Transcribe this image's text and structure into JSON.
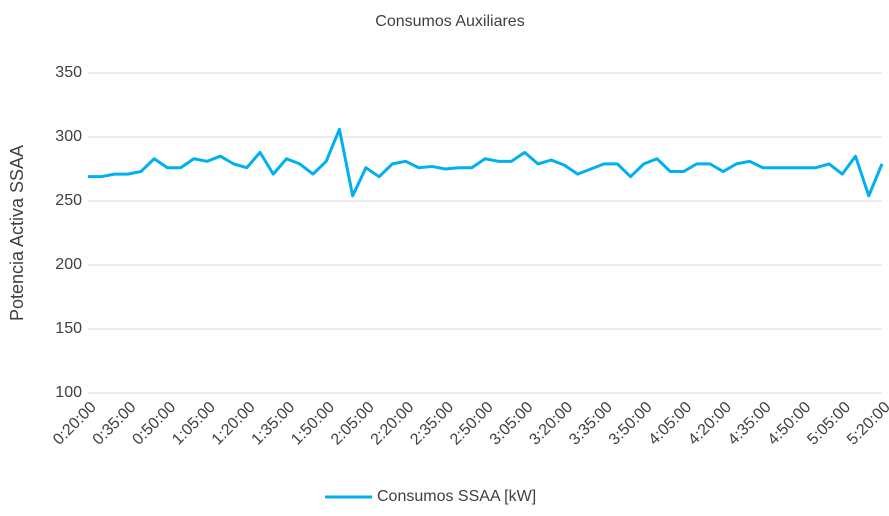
{
  "chart_data": {
    "type": "line",
    "title": "Consumos Auxiliares",
    "y_label": "Potencia Activa SSAA",
    "categories": [
      "0:20:00",
      null,
      null,
      "0:35:00",
      null,
      null,
      "0:50:00",
      null,
      null,
      "1:05:00",
      null,
      null,
      "1:20:00",
      null,
      null,
      "1:35:00",
      null,
      null,
      "1:50:00",
      null,
      null,
      "2:05:00",
      null,
      null,
      "2:20:00",
      null,
      null,
      "2:35:00",
      null,
      null,
      "2:50:00",
      null,
      null,
      "3:05:00",
      null,
      null,
      "3:20:00",
      null,
      null,
      "3:35:00",
      null,
      null,
      "3:50:00",
      null,
      null,
      "4:05:00",
      null,
      null,
      "4:20:00",
      null,
      null,
      "4:35:00",
      null,
      null,
      "4:50:00",
      null,
      null,
      "5:05:00",
      null,
      null,
      "5:20:00"
    ],
    "series": [
      {
        "name": "Consumos SSAA [kW]",
        "color": "#00b0f0",
        "values": [
          269,
          269,
          271,
          271,
          273,
          283,
          276,
          276,
          283,
          281,
          285,
          279,
          276,
          288,
          271,
          283,
          279,
          271,
          281,
          306,
          254,
          276,
          269,
          279,
          281,
          276,
          277,
          275,
          276,
          276,
          283,
          281,
          281,
          288,
          279,
          282,
          278,
          271,
          275,
          279,
          279,
          269,
          279,
          283,
          273,
          273,
          279,
          279,
          273,
          279,
          281,
          276,
          276,
          276,
          276,
          276,
          279,
          271,
          285,
          254,
          279
        ]
      }
    ],
    "ylim": [
      100,
      350
    ],
    "yticks": [
      100,
      150,
      200,
      250,
      300,
      350
    ],
    "grid": true,
    "legend": "bottom"
  }
}
